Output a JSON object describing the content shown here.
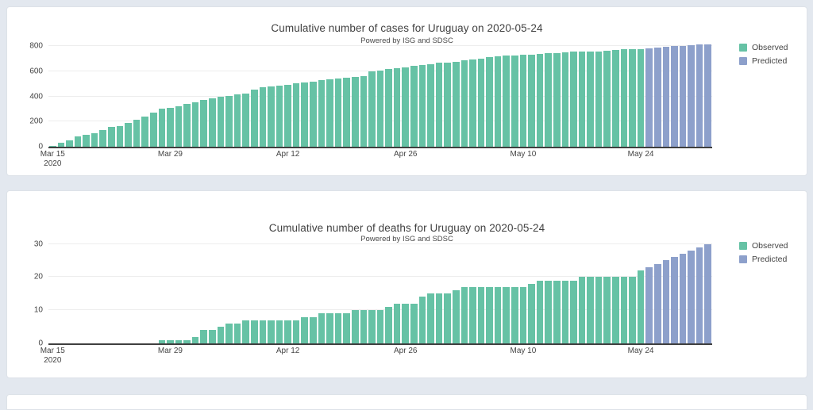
{
  "page": {
    "background_color": "#e3e8ef",
    "card_background": "#ffffff",
    "card_border": "#dde2e8"
  },
  "colors": {
    "observed": "#66c2a5",
    "predicted": "#8da0cb",
    "axis_text": "#444444",
    "axis_line": "#3f3f3f",
    "gridline": "#ededed"
  },
  "chart_data": [
    {
      "type": "bar",
      "title": "Cumulative number of cases for Uruguay on 2020-05-24",
      "subtitle": "Powered by ISG and SDSC",
      "xlabel": "",
      "ylabel": "",
      "grid": true,
      "legend_position": "right-top",
      "x_start_date": "2020-03-15",
      "x_ticks": [
        {
          "index": 0,
          "label": "Mar 15",
          "sublabel": "2020"
        },
        {
          "index": 14,
          "label": "Mar 29",
          "sublabel": ""
        },
        {
          "index": 28,
          "label": "Apr 12",
          "sublabel": ""
        },
        {
          "index": 42,
          "label": "Apr 26",
          "sublabel": ""
        },
        {
          "index": 56,
          "label": "May 10",
          "sublabel": ""
        },
        {
          "index": 70,
          "label": "May 24",
          "sublabel": ""
        }
      ],
      "y_ticks": [
        0,
        200,
        400,
        600,
        800
      ],
      "ylim": [
        0,
        819
      ],
      "series": [
        {
          "name": "Observed",
          "color": "#66c2a5",
          "values": [
            8,
            29,
            50,
            79,
            94,
            110,
            135,
            158,
            162,
            189,
            217,
            238,
            274,
            304,
            310,
            320,
            338,
            350,
            369,
            386,
            400,
            406,
            415,
            424,
            456,
            473,
            480,
            483,
            494,
            502,
            508,
            517,
            528,
            535,
            543,
            549,
            557,
            563,
            596,
            606,
            620,
            625,
            630,
            643,
            650,
            657,
            665,
            670,
            675,
            684,
            694,
            702,
            711,
            717,
            723,
            724,
            732,
            733,
            737,
            742,
            746,
            749,
            753,
            754,
            757,
            759,
            764,
            769,
            772,
            775,
            778
          ]
        },
        {
          "name": "Predicted",
          "color": "#8da0cb",
          "values": [
            783,
            788,
            793,
            798,
            803,
            807,
            811,
            815
          ]
        }
      ]
    },
    {
      "type": "bar",
      "title": "Cumulative number of deaths for Uruguay on 2020-05-24",
      "subtitle": "Powered by ISG and SDSC",
      "xlabel": "",
      "ylabel": "",
      "grid": true,
      "legend_position": "right-top",
      "x_start_date": "2020-03-15",
      "x_ticks": [
        {
          "index": 0,
          "label": "Mar 15",
          "sublabel": "2020"
        },
        {
          "index": 14,
          "label": "Mar 29",
          "sublabel": ""
        },
        {
          "index": 28,
          "label": "Apr 12",
          "sublabel": ""
        },
        {
          "index": 42,
          "label": "Apr 26",
          "sublabel": ""
        },
        {
          "index": 56,
          "label": "May 10",
          "sublabel": ""
        },
        {
          "index": 70,
          "label": "May 24",
          "sublabel": ""
        }
      ],
      "y_ticks": [
        0,
        10,
        20,
        30
      ],
      "ylim": [
        0,
        30.6
      ],
      "series": [
        {
          "name": "Observed",
          "color": "#66c2a5",
          "values": [
            0,
            0,
            0,
            0,
            0,
            0,
            0,
            0,
            0,
            0,
            0,
            0,
            0,
            1,
            1,
            1,
            1,
            2,
            4,
            4,
            5,
            6,
            6,
            7,
            7,
            7,
            7,
            7,
            7,
            7,
            8,
            8,
            9,
            9,
            9,
            9,
            10,
            10,
            10,
            10,
            11,
            12,
            12,
            12,
            14,
            15,
            15,
            15,
            16,
            17,
            17,
            17,
            17,
            17,
            17,
            17,
            17,
            18,
            19,
            19,
            19,
            19,
            19,
            20,
            20,
            20,
            20,
            20,
            20,
            20,
            22
          ]
        },
        {
          "name": "Predicted",
          "color": "#8da0cb",
          "values": [
            23,
            24,
            25,
            26,
            27,
            28,
            29,
            30
          ]
        }
      ]
    }
  ]
}
